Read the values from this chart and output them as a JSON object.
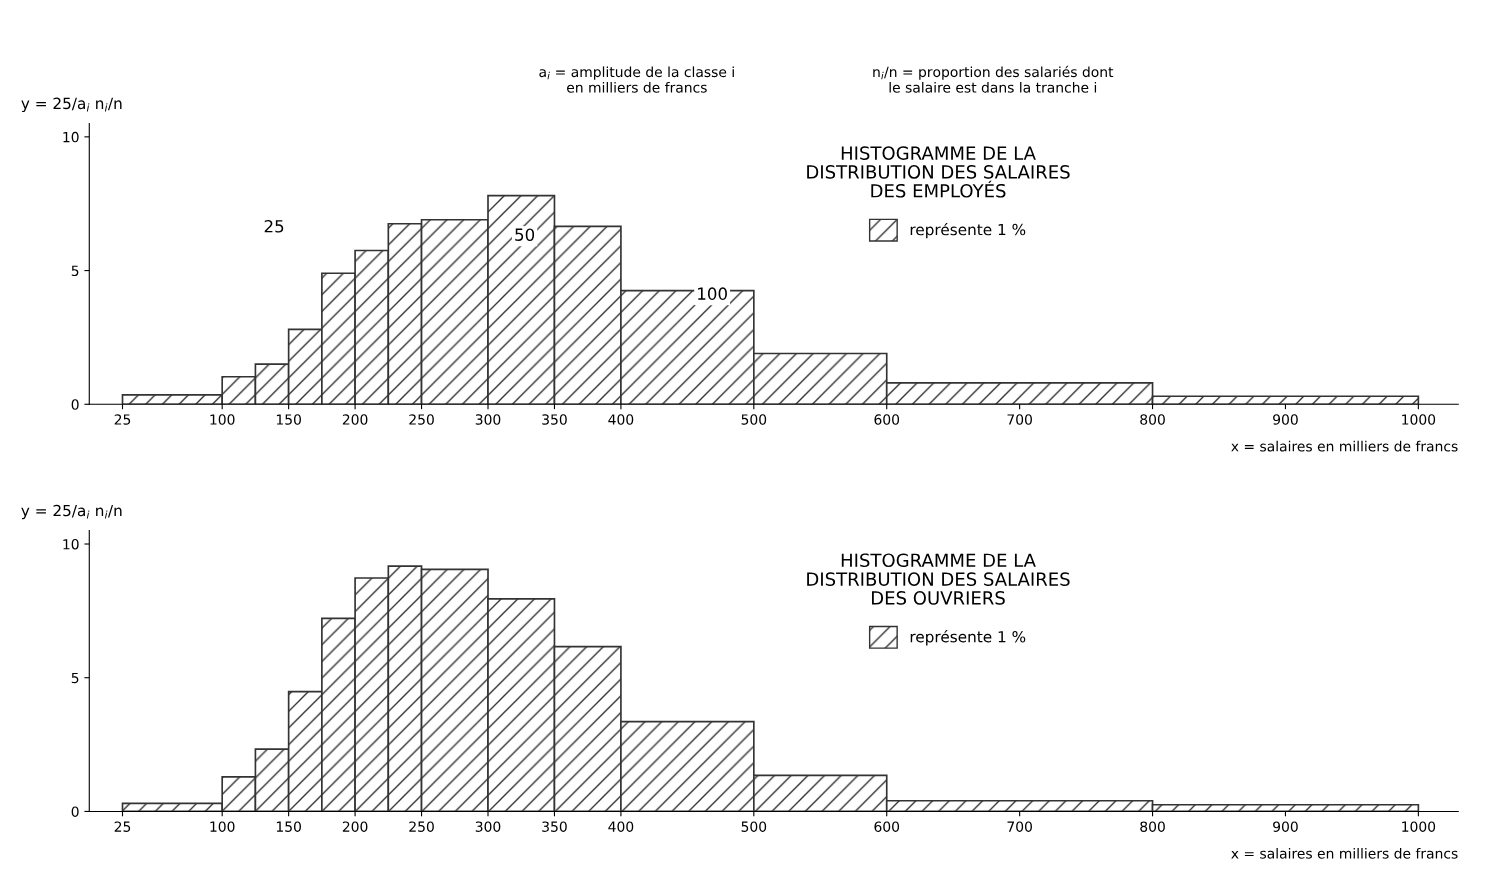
{
  "chart_data": [
    {
      "type": "histogram",
      "title": "HISTOGRAMME DE LA\nDISTRIBUTION DES SALAIRES\nDES EMPLOYÉS",
      "ylabel": "y = 25/a$_{i}$ n$_{i}$/n",
      "xlabel": "x = salaires en milliers de francs",
      "bins": [
        25,
        100,
        125,
        150,
        175,
        200,
        225,
        250,
        300,
        350,
        400,
        500,
        600,
        800,
        1000
      ],
      "series": [
        {
          "name": "représente 1 %",
          "color": "#333333",
          "values": [
            0.35,
            1.03,
            1.5,
            2.8,
            4.9,
            5.75,
            6.75,
            6.9,
            7.8,
            6.65,
            4.25,
            1.9,
            0.8,
            0.3
          ]
        }
      ],
      "xlim": [
        0,
        1030
      ],
      "xticks": [
        25,
        100,
        150,
        200,
        250,
        300,
        350,
        400,
        500,
        600,
        700,
        800,
        900,
        1000
      ],
      "ylim": [
        0,
        10.5
      ],
      "yticks": [
        0,
        5,
        10
      ],
      "grid": false,
      "legend": "right",
      "annotations": [
        "a$_{i}$ = amplitude de la classe i\nen milliers de francs",
        "n$_{i}$/n = proportion des salariés dont\nle salaire est dans la tranche i",
        "25",
        "50",
        "100"
      ]
    },
    {
      "type": "histogram",
      "title": "HISTOGRAMME DE LA\nDISTRIBUTION DES SALAIRES\nDES OUVRIERS",
      "ylabel": "y = 25/a$_{i}$ n$_{i}$/n",
      "xlabel": "x = salaires en milliers de francs",
      "bins": [
        25,
        100,
        125,
        150,
        175,
        200,
        225,
        250,
        300,
        350,
        400,
        500,
        600,
        800,
        1000
      ],
      "series": [
        {
          "name": "représente 1 %",
          "color": "#333333",
          "values": [
            0.3,
            1.29,
            2.33,
            4.48,
            7.22,
            8.73,
            9.17,
            9.05,
            7.95,
            6.16,
            3.36,
            1.35,
            0.4,
            0.25
          ]
        }
      ],
      "xlim": [
        0,
        1030
      ],
      "xticks": [
        25,
        100,
        150,
        200,
        250,
        300,
        350,
        400,
        500,
        600,
        700,
        800,
        900,
        1000
      ],
      "ylim": [
        0,
        10.5
      ],
      "yticks": [
        0,
        5,
        10
      ],
      "grid": false,
      "legend": "right"
    }
  ]
}
